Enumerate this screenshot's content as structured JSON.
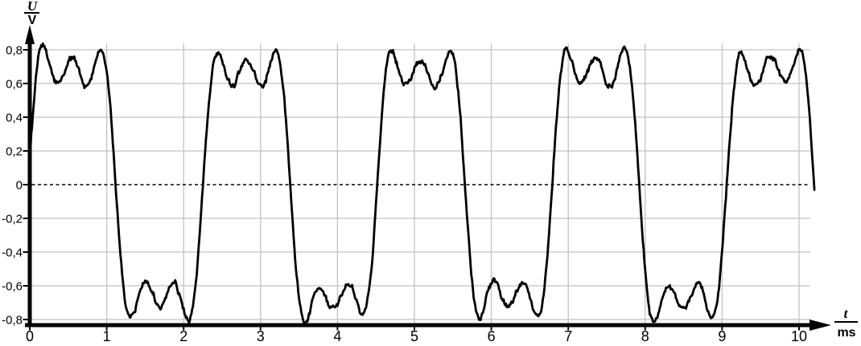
{
  "page": {
    "background": "#ffffff"
  },
  "chart_data": {
    "type": "line",
    "title": "",
    "xlabel": "t / ms",
    "ylabel": "U / V",
    "ylabel_numerator": "U",
    "ylabel_denominator": "V",
    "xlabel_numerator": "t",
    "xlabel_denominator": "ms",
    "xlim": [
      0,
      10.4
    ],
    "ylim": [
      -0.84,
      0.85
    ],
    "grid": true,
    "grid_color": "#c2c2c2",
    "axis_color": "#000000",
    "trace_color": "#000000",
    "zero_line_style": "dashed",
    "decimal_separator": ",",
    "x_ticks": [
      {
        "t": 0,
        "label": "0"
      },
      {
        "t": 1,
        "label": "1"
      },
      {
        "t": 2,
        "label": "2"
      },
      {
        "t": 3,
        "label": "3"
      },
      {
        "t": 4,
        "label": "4"
      },
      {
        "t": 5,
        "label": "5"
      },
      {
        "t": 6,
        "label": "6"
      },
      {
        "t": 7,
        "label": "7"
      },
      {
        "t": 8,
        "label": "8"
      },
      {
        "t": 9,
        "label": "9"
      },
      {
        "t": 10,
        "label": "10"
      }
    ],
    "y_ticks": [
      {
        "v": 0.8,
        "label": "0,8"
      },
      {
        "v": 0.6,
        "label": "0,6"
      },
      {
        "v": 0.4,
        "label": "0,4"
      },
      {
        "v": 0.2,
        "label": "0,2"
      },
      {
        "v": 0,
        "label": "0"
      },
      {
        "v": -0.2,
        "label": "-0,2"
      },
      {
        "v": -0.4,
        "label": "-0,4"
      },
      {
        "v": -0.6,
        "label": "-0,6"
      },
      {
        "v": -0.8,
        "label": "-0,8"
      }
    ],
    "waveform": {
      "shape": "square_wave_fourier_approx_with_noise",
      "harmonics": [
        1,
        3,
        5
      ],
      "fourier_scale": 0.853,
      "period_ms": 2.27,
      "rising_zero_crossing_ms": -0.02,
      "t_start_ms": 0,
      "t_end_ms": 10.2,
      "samples_per_ms": 100,
      "peak_v": 0.8,
      "plateau_center_v": 0.74,
      "ripple_trough_v": 0.59,
      "min_v": -0.82,
      "positive_plateau_centers_ms": [
        0.55,
        2.82,
        5.09,
        7.36,
        9.63
      ],
      "noise": {
        "seed": 20240613,
        "wander_amplitude_v": 0.022,
        "wander_smoothing": 0.9,
        "jitter_amplitude_v": 0.016
      },
      "clamp_v": [
        -0.825,
        0.84
      ]
    }
  }
}
